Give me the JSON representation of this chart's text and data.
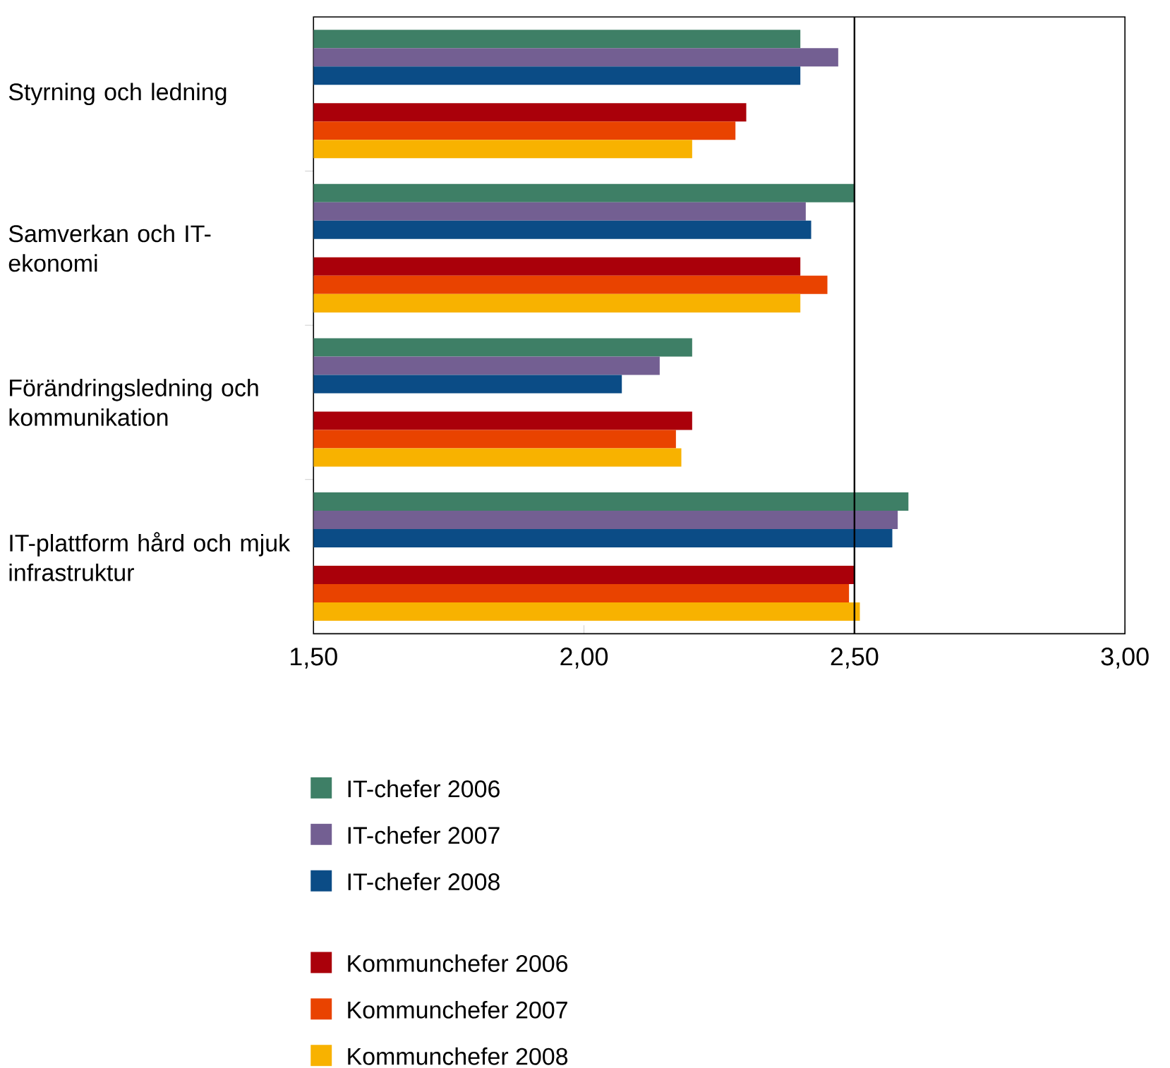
{
  "chart_data": {
    "type": "bar",
    "orientation": "horizontal",
    "categories": [
      "Styrning och ledning",
      "Samverkan och IT-ekonomi",
      "Förändringsledning och kommunikation",
      "IT-plattform hård och mjuk infrastruktur"
    ],
    "series": [
      {
        "name": "IT-chefer 2006",
        "color": "#3e7f66",
        "values": [
          2.4,
          2.5,
          2.2,
          2.6
        ]
      },
      {
        "name": "IT-chefer 2007",
        "color": "#735f92",
        "values": [
          2.47,
          2.41,
          2.14,
          2.58
        ]
      },
      {
        "name": "IT-chefer 2008",
        "color": "#0b4c86",
        "values": [
          2.4,
          2.42,
          2.07,
          2.57
        ]
      },
      {
        "name": "Kommunchefer 2006",
        "color": "#aa000a",
        "values": [
          2.3,
          2.4,
          2.2,
          2.5
        ]
      },
      {
        "name": "Kommunchefer 2007",
        "color": "#e94300",
        "values": [
          2.28,
          2.45,
          2.17,
          2.49
        ]
      },
      {
        "name": "Kommunchefer 2008",
        "color": "#f8b200",
        "values": [
          2.2,
          2.4,
          2.18,
          2.51
        ]
      }
    ],
    "xlim": [
      1.5,
      3.0
    ],
    "xticks": [
      {
        "value": 1.5,
        "label": "1,50"
      },
      {
        "value": 2.0,
        "label": "2,00"
      },
      {
        "value": 2.5,
        "label": "2,50"
      },
      {
        "value": 3.0,
        "label": "3,00"
      }
    ],
    "ref_lines": [
      {
        "axis": "x",
        "value": 2.5
      }
    ],
    "grid": false,
    "legend": "bottom"
  }
}
